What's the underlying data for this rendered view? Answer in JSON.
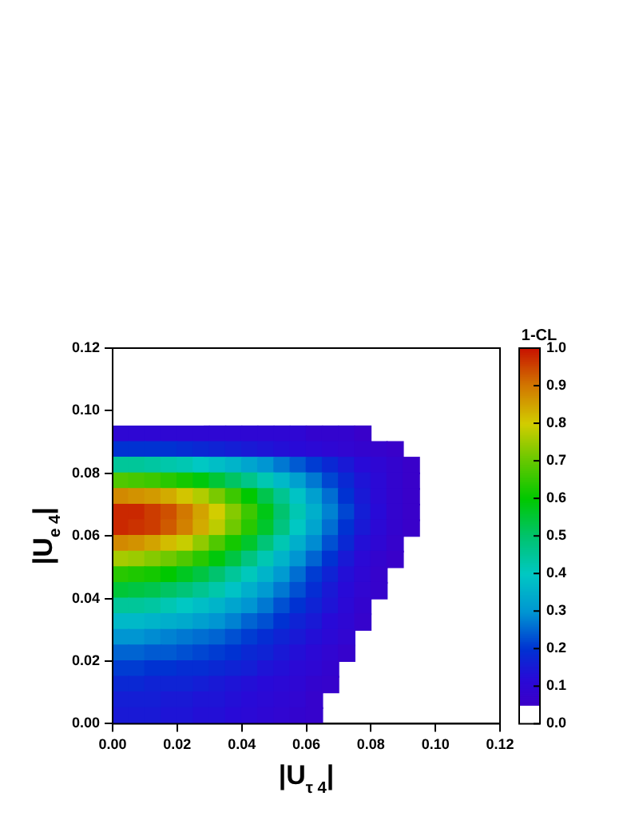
{
  "chart_data": {
    "type": "heatmap",
    "xlabel": "|U$_{τ 4}$|",
    "ylabel": "|U$_{e 4}$|",
    "clabel": "1-CL",
    "xlim": [
      0,
      0.12
    ],
    "ylim": [
      0,
      0.12
    ],
    "xticks": [
      {
        "value": 0,
        "label": "0.00"
      },
      {
        "value": 0.02,
        "label": "0.02"
      },
      {
        "value": 0.04,
        "label": "0.04"
      },
      {
        "value": 0.06,
        "label": "0.06"
      },
      {
        "value": 0.08,
        "label": "0.08"
      },
      {
        "value": 0.1,
        "label": "0.10"
      },
      {
        "value": 0.12,
        "label": "0.12"
      }
    ],
    "yticks": [
      {
        "value": 0,
        "label": "0.00"
      },
      {
        "value": 0.02,
        "label": "0.02"
      },
      {
        "value": 0.04,
        "label": "0.04"
      },
      {
        "value": 0.06,
        "label": "0.06"
      },
      {
        "value": 0.08,
        "label": "0.08"
      },
      {
        "value": 0.1,
        "label": "0.10"
      },
      {
        "value": 0.12,
        "label": "0.12"
      }
    ],
    "clim": [
      0,
      1
    ],
    "cticks": [
      {
        "value": 0,
        "label": "0.0"
      },
      {
        "value": 0.1,
        "label": "0.1"
      },
      {
        "value": 0.2,
        "label": "0.2"
      },
      {
        "value": 0.3,
        "label": "0.3"
      },
      {
        "value": 0.4,
        "label": "0.4"
      },
      {
        "value": 0.5,
        "label": "0.5"
      },
      {
        "value": 0.6,
        "label": "0.6"
      },
      {
        "value": 0.7,
        "label": "0.7"
      },
      {
        "value": 0.8,
        "label": "0.8"
      },
      {
        "value": 0.9,
        "label": "0.9"
      },
      {
        "value": 1,
        "label": "1.0"
      }
    ],
    "cells": [
      [
        0,
        0,
        0,
        0,
        0,
        0,
        0,
        0,
        0,
        0,
        0,
        0,
        0,
        0,
        0,
        0,
        0,
        0,
        0,
        0,
        0,
        0,
        0,
        0
      ],
      [
        0,
        0,
        0,
        0,
        0,
        0,
        0,
        0,
        0,
        0,
        0,
        0,
        0,
        0,
        0,
        0,
        0,
        0,
        0,
        0,
        0,
        0,
        0,
        0
      ],
      [
        0,
        0,
        0,
        0,
        0,
        0,
        0,
        0,
        0,
        0,
        0,
        0,
        0,
        0,
        0,
        0,
        0,
        0,
        0,
        0,
        0,
        0,
        0,
        0
      ],
      [
        0,
        0,
        0,
        0,
        0,
        0,
        0,
        0,
        0,
        0,
        0,
        0,
        0,
        0,
        0,
        0,
        0,
        0,
        0,
        0,
        0,
        0,
        0,
        0
      ],
      [
        0,
        0,
        0,
        0,
        0,
        0,
        0,
        0,
        0,
        0,
        0,
        0,
        0,
        0,
        0,
        0,
        0,
        0,
        0,
        0,
        0,
        0,
        0,
        0
      ],
      [
        0.1,
        0.1,
        0.1,
        0.1,
        0.1,
        0.1,
        0.1,
        0.1,
        0.1,
        0.1,
        0.1,
        0.1,
        0.08,
        0.08,
        0.08,
        0.06,
        null,
        null,
        null,
        null,
        null,
        null,
        null,
        null
      ],
      [
        0.2,
        0.2,
        0.2,
        0.2,
        0.19,
        0.18,
        0.17,
        0.16,
        0.15,
        0.14,
        0.13,
        0.12,
        0.11,
        0.1,
        0.09,
        0.08,
        0.07,
        0.06,
        null,
        null,
        null,
        null,
        null,
        null
      ],
      [
        0.45,
        0.45,
        0.44,
        0.43,
        0.42,
        0.4,
        0.38,
        0.36,
        0.33,
        0.3,
        0.27,
        0.24,
        0.21,
        0.18,
        0.15,
        0.12,
        0.1,
        0.08,
        0.06,
        null,
        null,
        null,
        null,
        null
      ],
      [
        0.68,
        0.67,
        0.66,
        0.64,
        0.62,
        0.59,
        0.55,
        0.51,
        0.47,
        0.42,
        0.37,
        0.32,
        0.27,
        0.22,
        0.18,
        0.14,
        0.11,
        0.08,
        0.06,
        null,
        null,
        null,
        null,
        null
      ],
      [
        0.88,
        0.87,
        0.86,
        0.84,
        0.81,
        0.77,
        0.72,
        0.66,
        0.6,
        0.53,
        0.46,
        0.39,
        0.32,
        0.26,
        0.2,
        0.15,
        0.11,
        0.08,
        0.06,
        null,
        null,
        null,
        null,
        null
      ],
      [
        0.98,
        0.98,
        0.96,
        0.94,
        0.9,
        0.85,
        0.8,
        0.73,
        0.66,
        0.58,
        0.5,
        0.42,
        0.35,
        0.28,
        0.22,
        0.16,
        0.12,
        0.08,
        0.06,
        null,
        null,
        null,
        null,
        null
      ],
      [
        0.98,
        0.97,
        0.96,
        0.93,
        0.89,
        0.84,
        0.78,
        0.71,
        0.64,
        0.56,
        0.48,
        0.4,
        0.33,
        0.26,
        0.2,
        0.15,
        0.11,
        0.08,
        0.06,
        null,
        null,
        null,
        null,
        null
      ],
      [
        0.88,
        0.87,
        0.85,
        0.82,
        0.79,
        0.74,
        0.68,
        0.62,
        0.56,
        0.49,
        0.42,
        0.35,
        0.29,
        0.23,
        0.18,
        0.13,
        0.1,
        0.07,
        null,
        null,
        null,
        null,
        null,
        null
      ],
      [
        0.76,
        0.75,
        0.73,
        0.71,
        0.68,
        0.64,
        0.59,
        0.54,
        0.48,
        0.42,
        0.36,
        0.3,
        0.25,
        0.2,
        0.15,
        0.11,
        0.08,
        0.06,
        null,
        null,
        null,
        null,
        null,
        null
      ],
      [
        0.64,
        0.63,
        0.62,
        0.6,
        0.57,
        0.54,
        0.5,
        0.45,
        0.41,
        0.36,
        0.31,
        0.26,
        0.21,
        0.17,
        0.13,
        0.1,
        0.07,
        null,
        null,
        null,
        null,
        null,
        null,
        null
      ],
      [
        0.55,
        0.54,
        0.53,
        0.51,
        0.49,
        0.46,
        0.43,
        0.39,
        0.35,
        0.31,
        0.27,
        0.23,
        0.19,
        0.15,
        0.12,
        0.09,
        0.07,
        null,
        null,
        null,
        null,
        null,
        null,
        null
      ],
      [
        0.45,
        0.45,
        0.44,
        0.42,
        0.4,
        0.38,
        0.36,
        0.33,
        0.3,
        0.27,
        0.23,
        0.2,
        0.17,
        0.14,
        0.11,
        0.08,
        null,
        null,
        null,
        null,
        null,
        null,
        null,
        null
      ],
      [
        0.37,
        0.37,
        0.36,
        0.35,
        0.34,
        0.32,
        0.3,
        0.28,
        0.25,
        0.23,
        0.2,
        0.17,
        0.15,
        0.12,
        0.1,
        0.07,
        null,
        null,
        null,
        null,
        null,
        null,
        null,
        null
      ],
      [
        0.3,
        0.3,
        0.29,
        0.28,
        0.27,
        0.26,
        0.25,
        0.23,
        0.21,
        0.19,
        0.17,
        0.15,
        0.13,
        0.11,
        0.09,
        null,
        null,
        null,
        null,
        null,
        null,
        null,
        null,
        null
      ],
      [
        0.25,
        0.25,
        0.24,
        0.24,
        0.23,
        0.22,
        0.21,
        0.2,
        0.18,
        0.17,
        0.15,
        0.13,
        0.11,
        0.09,
        0.07,
        null,
        null,
        null,
        null,
        null,
        null,
        null,
        null,
        null
      ],
      [
        0.21,
        0.21,
        0.2,
        0.2,
        0.19,
        0.19,
        0.18,
        0.17,
        0.16,
        0.14,
        0.13,
        0.11,
        0.1,
        0.08,
        null,
        null,
        null,
        null,
        null,
        null,
        null,
        null,
        null,
        null
      ],
      [
        0.18,
        0.18,
        0.17,
        0.17,
        0.17,
        0.16,
        0.15,
        0.14,
        0.13,
        0.12,
        0.11,
        0.1,
        0.08,
        0.07,
        null,
        null,
        null,
        null,
        null,
        null,
        null,
        null,
        null,
        null
      ],
      [
        0.16,
        0.16,
        0.16,
        0.15,
        0.15,
        0.14,
        0.14,
        0.13,
        0.12,
        0.11,
        0.1,
        0.09,
        0.07,
        null,
        null,
        null,
        null,
        null,
        null,
        null,
        null,
        null,
        null,
        null
      ],
      [
        0.15,
        0.15,
        0.15,
        0.14,
        0.14,
        0.13,
        0.13,
        0.12,
        0.11,
        0.1,
        0.09,
        0.08,
        0.07,
        null,
        null,
        null,
        null,
        null,
        null,
        null,
        null,
        null,
        null,
        null
      ]
    ]
  }
}
